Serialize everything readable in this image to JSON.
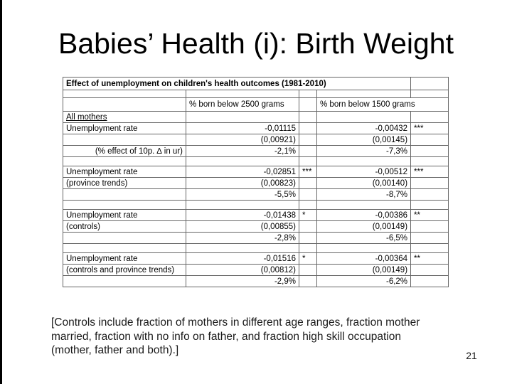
{
  "slide": {
    "title": "Babies’ Health (i): Birth Weight",
    "page_number": "21",
    "footnote": {
      "lines": [
        "[Controls include fraction of mothers in different age ranges, fraction mother",
        "married, fraction with no info on father, and fraction high skill occupation",
        "(mother, father and both).]"
      ]
    }
  },
  "table": {
    "title": "Effect of unemployment on children's health outcomes (1981-2010)",
    "columns": {
      "col_2500": "% born below 2500 grams",
      "col_1500": "% born below 1500 grams"
    },
    "rows": [
      {
        "label": "All mothers",
        "group": true,
        "v2500": "",
        "s2500": "",
        "v1500": "",
        "s1500": ""
      },
      {
        "label": "Unemployment rate",
        "v2500": "-0,01115",
        "s2500": "",
        "v1500": "-0,00432",
        "s1500": "***"
      },
      {
        "label": "",
        "v2500": "(0,00921)",
        "s2500": "",
        "v1500": "(0,00145)",
        "s1500": ""
      },
      {
        "label": "(% effect of 10p. ∆ in ur)",
        "label_align": "right",
        "v2500": "-2,1%",
        "s2500": "",
        "v1500": "-7,3%",
        "s1500": ""
      },
      {
        "blank": true
      },
      {
        "label": "Unemployment rate",
        "v2500": "-0,02851",
        "s2500": "***",
        "v1500": "-0,00512",
        "s1500": "***"
      },
      {
        "label": "(province trends)",
        "v2500": "(0,00823)",
        "s2500": "",
        "v1500": "(0,00140)",
        "s1500": ""
      },
      {
        "label": "",
        "v2500": "-5,5%",
        "s2500": "",
        "v1500": "-8,7%",
        "s1500": ""
      },
      {
        "blank": true
      },
      {
        "label": "Unemployment rate",
        "v2500": "-0,01438",
        "s2500": "*",
        "v1500": "-0,00386",
        "s1500": "**"
      },
      {
        "label": "(controls)",
        "v2500": "(0,00855)",
        "s2500": "",
        "v1500": "(0,00149)",
        "s1500": ""
      },
      {
        "label": "",
        "v2500": "-2,8%",
        "s2500": "",
        "v1500": "-6,5%",
        "s1500": ""
      },
      {
        "blank": true
      },
      {
        "label": "Unemployment rate",
        "v2500": "-0,01516",
        "s2500": "*",
        "v1500": "-0,00364",
        "s1500": "**"
      },
      {
        "label": "(controls and province trends)",
        "v2500": "(0,00812)",
        "s2500": "",
        "v1500": "(0,00149)",
        "s1500": ""
      },
      {
        "label": "",
        "v2500": "-2,9%",
        "s2500": "",
        "v1500": "-6,2%",
        "s1500": ""
      }
    ]
  },
  "colors": {
    "background": "#ffffff",
    "text": "#000000",
    "grid": "#666666",
    "left_edge": "#000000"
  }
}
